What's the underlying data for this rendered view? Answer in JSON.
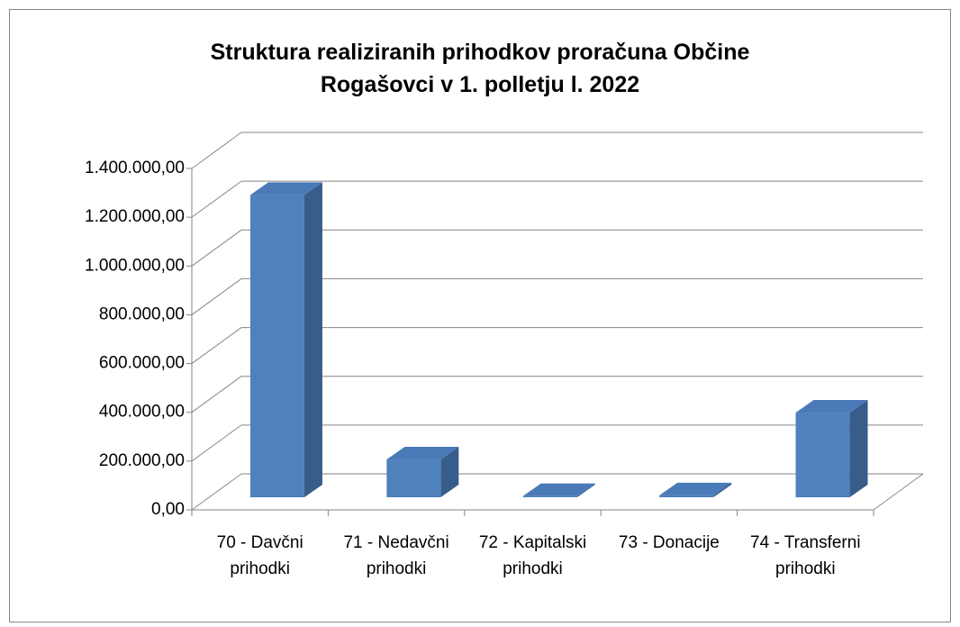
{
  "chart_data": {
    "type": "bar3d",
    "title": "Struktura realiziranih prihodkov proračuna Občine Rogašovci v 1. polletju l. 2022",
    "categories": [
      "70 - Davčni prihodki",
      "71 - Nedavčni prihodki",
      "72 - Kapitalski prihodki",
      "73 - Donacije",
      "74 - Transferni prihodki"
    ],
    "values": [
      1240000,
      155000,
      5000,
      8000,
      347000
    ],
    "color": "#4f81bd",
    "ylim": [
      0,
      1400000
    ],
    "yticks": [
      {
        "value": 0,
        "label": "0,00"
      },
      {
        "value": 200000,
        "label": "200.000,00"
      },
      {
        "value": 400000,
        "label": "400.000,00"
      },
      {
        "value": 600000,
        "label": "600.000,00"
      },
      {
        "value": 800000,
        "label": "800.000,00"
      },
      {
        "value": 1000000,
        "label": "1.000.000,00"
      },
      {
        "value": 1200000,
        "label": "1.200.000,00"
      },
      {
        "value": 1400000,
        "label": "1.400.000,00"
      }
    ],
    "grid": true
  }
}
